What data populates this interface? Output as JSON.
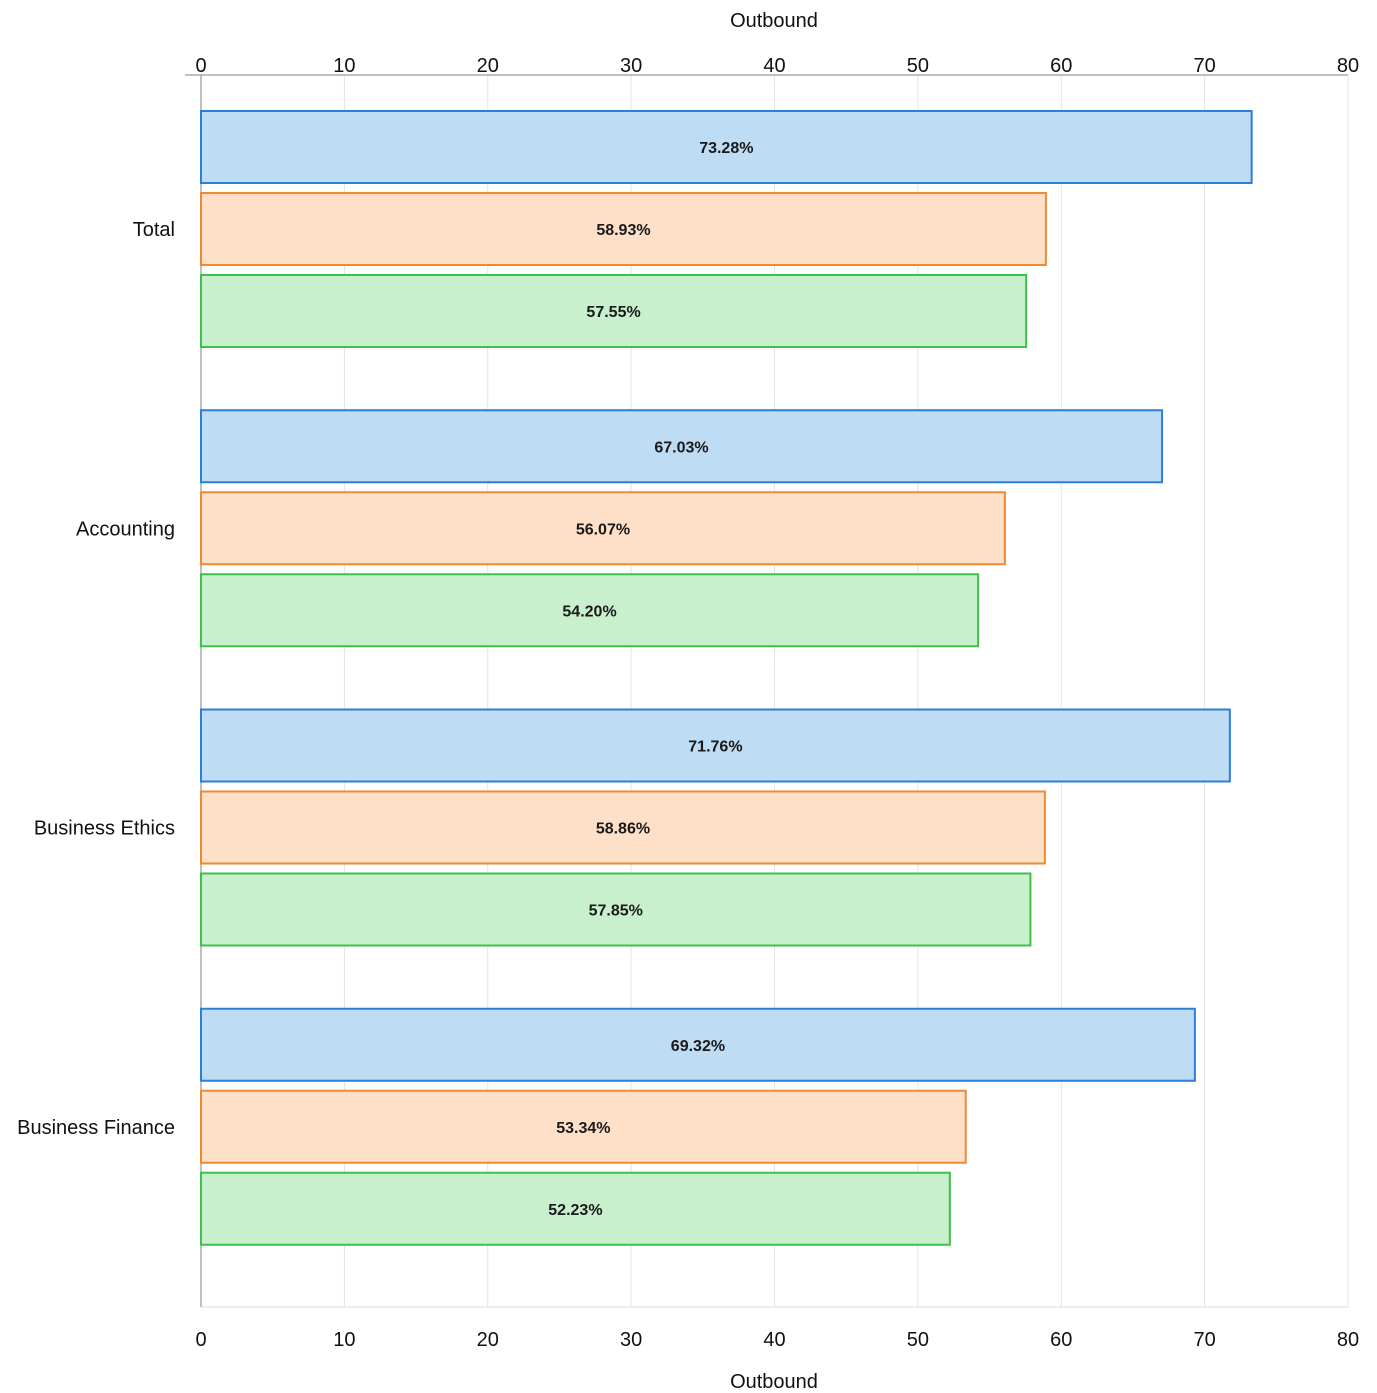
{
  "chart_data": {
    "type": "bar",
    "orientation": "horizontal",
    "categories": [
      "Total",
      "Accounting",
      "Business Ethics",
      "Business Finance"
    ],
    "series": [
      {
        "values": [
          73.28,
          67.03,
          71.76,
          69.32
        ],
        "color": "#2b7fd6",
        "fill": "#bfdcf5"
      },
      {
        "values": [
          58.93,
          56.07,
          58.86,
          53.34
        ],
        "color": "#ee8a33",
        "fill": "#fedfc7"
      },
      {
        "values": [
          57.55,
          54.2,
          57.85,
          52.23
        ],
        "color": "#3cc24a",
        "fill": "#c8f0cd"
      }
    ],
    "data_labels": [
      [
        "73.28%",
        "67.03%",
        "71.76%",
        "69.32%"
      ],
      [
        "58.93%",
        "56.07%",
        "58.86%",
        "53.34%"
      ],
      [
        "57.55%",
        "54.20%",
        "57.85%",
        "52.23%"
      ]
    ],
    "x_axis": {
      "title_top": "Outbound",
      "title_bottom": "Outbound",
      "range": [
        0,
        80
      ],
      "ticks": [
        "0",
        "10",
        "20",
        "30",
        "40",
        "50",
        "60",
        "70",
        "80"
      ]
    },
    "grid": true
  }
}
